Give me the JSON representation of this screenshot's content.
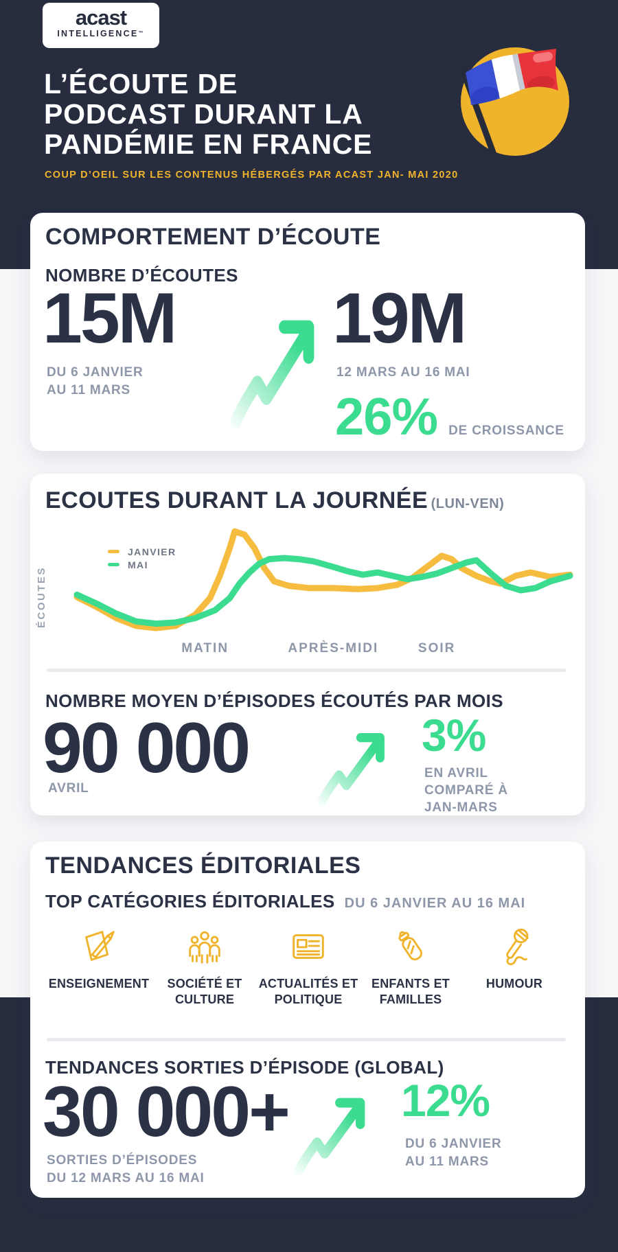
{
  "theme": {
    "navy": "#272d3f",
    "card_white": "#ffffff",
    "light_band": "#f5f6f8",
    "text_dark": "#2b3245",
    "text_gray": "#8d97a9",
    "green": "#3bdb90",
    "yellow": "#f0b42c",
    "divider": "#e9ebef",
    "flag_blue": "#3a51d4",
    "flag_red": "#e8353c"
  },
  "header": {
    "logo": {
      "brand": "acast",
      "sub": "INTELLIGENCE",
      "tm": "™"
    },
    "title_lines": [
      "L’ÉCOUTE DE",
      "PODCAST DURANT LA",
      "PANDÉMIE EN FRANCE"
    ],
    "subtitle": "COUP D’OEIL SUR LES CONTENUS HÉBERGÉS PAR ACAST JAN- MAI 2020",
    "flag_icon": "france-flag-badge"
  },
  "cards": {
    "comportement": {
      "title": "COMPORTEMENT D’ÉCOUTE",
      "subtitle": "NOMBRE D’ÉCOUTES",
      "before": {
        "value": "15M",
        "caption": "DU 6 JANVIER\nAU 11 MARS"
      },
      "after": {
        "value": "19M",
        "caption": "12 MARS AU 16 MAI"
      },
      "growth": {
        "value": "26%",
        "label": "DE CROISSANCE"
      }
    },
    "journee": {
      "title": "ECOUTES DURANT LA JOURNÉE",
      "title_suffix": "(LUN-VEN)",
      "episodes": {
        "heading": "NOMBRE MOYEN D’ÉPISODES ÉCOUTÉS PAR MOIS",
        "value": "90 000",
        "value_caption": "AVRIL",
        "growth_value": "3%",
        "growth_caption": "EN AVRIL\nCOMPARÉ À\nJAN-MARS"
      }
    },
    "tendances": {
      "title": "TENDANCES ÉDITORIALES",
      "categories_heading": "TOP CATÉGORIES ÉDITORIALES",
      "categories_period": "DU 6 JANVIER AU 16 MAI",
      "categories": [
        {
          "icon": "pencil-paper-icon",
          "label": "ENSEIGNEMENT"
        },
        {
          "icon": "people-icon",
          "label": "SOCIÉTÉ ET\nCULTURE"
        },
        {
          "icon": "newspaper-icon",
          "label": "ACTUALITÉS ET\nPOLITIQUE"
        },
        {
          "icon": "baby-bottle-icon",
          "label": "ENFANTS ET\nFAMILLES"
        },
        {
          "icon": "microphone-icon",
          "label": "HUMOUR"
        }
      ],
      "releases": {
        "heading": "TENDANCES SORTIES D’ÉPISODE (GLOBAL)",
        "value": "30 000+",
        "value_caption": "SORTIES D’ÉPISODES\nDU 12 MARS AU 16 MAI",
        "growth_value": "12%",
        "growth_caption": "DU 6 JANVIER\nAU 11 MARS"
      }
    }
  },
  "chart_data": {
    "type": "line",
    "title": "ECOUTES DURANT LA JOURNÉE (LUN-VEN)",
    "ylabel": "ÉCOUTES",
    "y_axis": "relative listens, no numeric scale shown (values 0-100 estimated)",
    "x_axis": "time of day, 0-100 (no numeric scale shown)",
    "x_labels": [
      "MATIN",
      "APRÈS-MIDI",
      "SOIR"
    ],
    "x_label_positions": [
      26,
      52,
      73
    ],
    "grid": false,
    "legend_position": "top-left inside plot",
    "series": [
      {
        "name": "JANVIER",
        "color": "#f5bc3f",
        "points": [
          [
            0,
            36
          ],
          [
            4,
            27
          ],
          [
            8,
            17
          ],
          [
            12,
            10
          ],
          [
            16,
            8
          ],
          [
            20,
            10
          ],
          [
            24,
            20
          ],
          [
            27,
            35
          ],
          [
            29,
            55
          ],
          [
            31,
            80
          ],
          [
            32,
            95
          ],
          [
            34,
            92
          ],
          [
            36,
            80
          ],
          [
            38,
            62
          ],
          [
            40,
            50
          ],
          [
            43,
            46
          ],
          [
            47,
            44
          ],
          [
            52,
            44
          ],
          [
            57,
            43
          ],
          [
            61,
            44
          ],
          [
            65,
            47
          ],
          [
            68,
            53
          ],
          [
            71,
            63
          ],
          [
            74,
            73
          ],
          [
            76,
            70
          ],
          [
            78,
            62
          ],
          [
            81,
            55
          ],
          [
            84,
            50
          ],
          [
            86,
            48
          ],
          [
            89,
            55
          ],
          [
            92,
            58
          ],
          [
            96,
            54
          ],
          [
            100,
            56
          ]
        ]
      },
      {
        "name": "MAI",
        "color": "#3bdb90",
        "points": [
          [
            0,
            38
          ],
          [
            4,
            30
          ],
          [
            8,
            21
          ],
          [
            12,
            14
          ],
          [
            16,
            12
          ],
          [
            20,
            13
          ],
          [
            24,
            17
          ],
          [
            28,
            24
          ],
          [
            31,
            35
          ],
          [
            33,
            48
          ],
          [
            35,
            58
          ],
          [
            37,
            66
          ],
          [
            39,
            70
          ],
          [
            42,
            71
          ],
          [
            45,
            70
          ],
          [
            48,
            68
          ],
          [
            52,
            63
          ],
          [
            55,
            59
          ],
          [
            58,
            56
          ],
          [
            61,
            58
          ],
          [
            64,
            55
          ],
          [
            67,
            52
          ],
          [
            70,
            54
          ],
          [
            73,
            57
          ],
          [
            76,
            62
          ],
          [
            79,
            67
          ],
          [
            81,
            69
          ],
          [
            84,
            57
          ],
          [
            87,
            46
          ],
          [
            90,
            42
          ],
          [
            93,
            44
          ],
          [
            96,
            50
          ],
          [
            100,
            55
          ]
        ]
      }
    ]
  }
}
